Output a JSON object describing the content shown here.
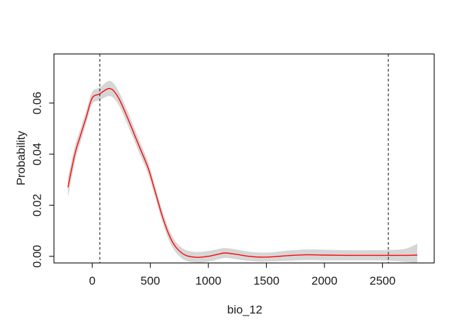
{
  "chart_data": {
    "type": "line",
    "title": "",
    "xlabel": "bio_12",
    "ylabel": "Probability",
    "xlim": [
      -330,
      2945
    ],
    "ylim": [
      -0.0026,
      0.0792
    ],
    "x_ticks": [
      0,
      500,
      1000,
      1500,
      2000,
      2500
    ],
    "x_tick_labels": [
      "0",
      "500",
      "1000",
      "1500",
      "2000",
      "2500"
    ],
    "y_ticks": [
      0,
      0.02,
      0.04,
      0.06
    ],
    "y_tick_labels": [
      "0.00",
      "0.02",
      "0.04",
      "0.06"
    ],
    "grid": false,
    "legend": null,
    "x": [
      -210,
      -150,
      -100,
      -50,
      0,
      65,
      150,
      220,
      300,
      400,
      480,
      540,
      600,
      660,
      720,
      800,
      900,
      1000,
      1080,
      1150,
      1250,
      1350,
      1450,
      1550,
      1700,
      1850,
      2000,
      2200,
      2400,
      2550,
      2700,
      2800
    ],
    "series": [
      {
        "name": "mean_response",
        "role": "line",
        "color": "#ff0000",
        "values": [
          0.027,
          0.04,
          0.0475,
          0.0548,
          0.062,
          0.0636,
          0.0657,
          0.0625,
          0.0546,
          0.0435,
          0.0347,
          0.0256,
          0.0162,
          0.0085,
          0.0036,
          0.0005,
          -0.0004,
          0,
          0.0008,
          0.0013,
          0.0007,
          0,
          -0.0003,
          -0.0002,
          0.0003,
          0.0006,
          0.0005,
          0.0004,
          0.0004,
          0.0004,
          0.0004,
          0.0005
        ]
      },
      {
        "name": "ci_upper",
        "role": "band-upper",
        "color": "#d6d6d6",
        "values": [
          0.031,
          0.0431,
          0.0502,
          0.0573,
          0.0644,
          0.0661,
          0.0687,
          0.0652,
          0.0572,
          0.046,
          0.0371,
          0.0279,
          0.0184,
          0.0107,
          0.0057,
          0.0026,
          0.0017,
          0.0021,
          0.0028,
          0.0032,
          0.0026,
          0.0018,
          0.0015,
          0.0016,
          0.0023,
          0.0027,
          0.0026,
          0.0024,
          0.0024,
          0.0025,
          0.003,
          0.005
        ]
      },
      {
        "name": "ci_lower",
        "role": "band-lower",
        "color": "#d6d6d6",
        "values": [
          0.023,
          0.0369,
          0.0448,
          0.0523,
          0.0596,
          0.0611,
          0.0627,
          0.0598,
          0.052,
          0.041,
          0.0323,
          0.0233,
          0.014,
          0.0063,
          0.0015,
          -0.0016,
          -0.0025,
          -0.0021,
          -0.0012,
          -0.0006,
          -0.0012,
          -0.0018,
          -0.0021,
          -0.002,
          -0.0017,
          -0.0015,
          -0.0016,
          -0.0016,
          -0.0016,
          -0.0017,
          -0.0022,
          -0.0027
        ]
      }
    ],
    "vlines": [
      {
        "x": 65,
        "style": "dashed",
        "color": "#3a3a3a"
      },
      {
        "x": 2550,
        "style": "dashed",
        "color": "#3a3a3a"
      }
    ],
    "colors": {
      "line": "#ff0000",
      "band": "#d6d6d6",
      "frame": "#1a1a1a",
      "text": "#1a1a1a",
      "vline": "#3a3a3a",
      "background": "#ffffff"
    }
  }
}
